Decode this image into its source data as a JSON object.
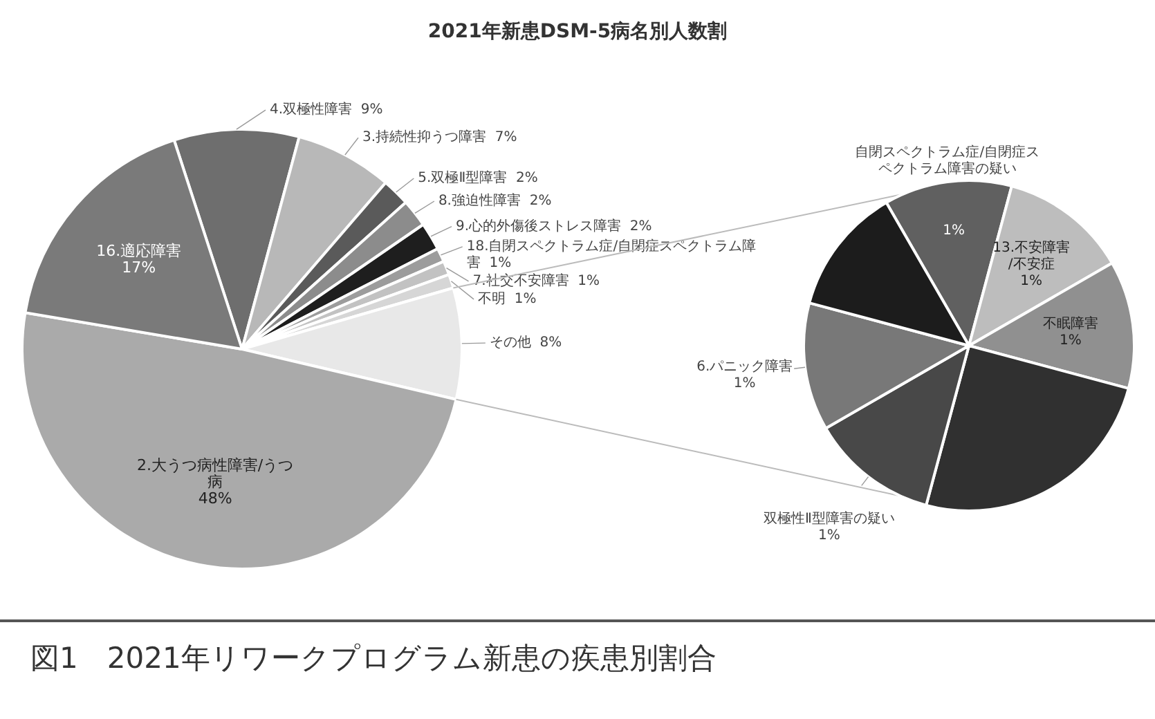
{
  "chart_data": [
    {
      "type": "pie",
      "title": "2021年新患DSM-5病名別人数割",
      "annotations": [
        "図1　2021年リワークプログラム新患の疾患別割合"
      ],
      "categories": [
        "4.双極性障害",
        "3.持続性抑うつ障害",
        "5.双極Ⅱ型障害",
        "8.強迫性障害",
        "9.心的外傷後ストレス障害",
        "18.自閉スペクトラム症/自閉症スペクトラム障害",
        "7.社交不安障害",
        "不明",
        "その他",
        "2.大うつ病性障害/うつ病",
        "16.適応障害"
      ],
      "values": [
        9,
        7,
        2,
        2,
        2,
        1,
        1,
        1,
        8,
        48,
        17
      ],
      "value_labels": [
        "9%",
        "7%",
        "2%",
        "2%",
        "2%",
        "1%",
        "1%",
        "1%",
        "8%",
        "48%",
        "17%"
      ],
      "colors": [
        "#6e6e6e",
        "#b8b8b8",
        "#5a5a5a",
        "#8c8c8c",
        "#1e1e1e",
        "#9c9c9c",
        "#c2c2c2",
        "#d6d6d6",
        "#e8e8e8",
        "#aaaaaa",
        "#7a7a7a"
      ]
    },
    {
      "type": "pie",
      "categories": [
        "自閉スペクトラム症/自閉症スペクトラム障害の疑い",
        "13.不安障害/不安症",
        "不眠障害",
        null,
        "双極性Ⅱ型障害の疑い",
        "6.パニック障害",
        null
      ],
      "values": [
        1,
        1,
        1,
        2,
        1,
        1,
        1
      ],
      "value_labels": [
        "1%",
        "1%",
        "1%",
        null,
        "1%",
        "1%",
        null
      ],
      "colors": [
        "#606060",
        "#bdbdbd",
        "#909090",
        "#303030",
        "#484848",
        "#787878",
        "#1c1c1c"
      ]
    }
  ]
}
